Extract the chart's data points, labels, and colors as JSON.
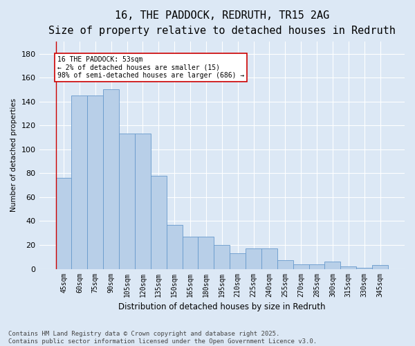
{
  "title": "16, THE PADDOCK, REDRUTH, TR15 2AG",
  "subtitle": "Size of property relative to detached houses in Redruth",
  "xlabel": "Distribution of detached houses by size in Redruth",
  "ylabel": "Number of detached properties",
  "categories": [
    "45sqm",
    "60sqm",
    "75sqm",
    "90sqm",
    "105sqm",
    "120sqm",
    "135sqm",
    "150sqm",
    "165sqm",
    "180sqm",
    "195sqm",
    "210sqm",
    "225sqm",
    "240sqm",
    "255sqm",
    "270sqm",
    "285sqm",
    "300sqm",
    "315sqm",
    "330sqm",
    "345sqm"
  ],
  "values": [
    76,
    145,
    145,
    150,
    113,
    113,
    78,
    37,
    27,
    27,
    20,
    13,
    17,
    17,
    7,
    4,
    4,
    6,
    2,
    1,
    3
  ],
  "bar_color": "#b8cfe8",
  "bar_edge_color": "#6699cc",
  "annotation_box_color": "#ffffff",
  "annotation_box_edge": "#cc0000",
  "annotation_text": "16 THE PADDOCK: 53sqm\n← 2% of detached houses are smaller (15)\n98% of semi-detached houses are larger (686) →",
  "ylim": [
    0,
    190
  ],
  "yticks": [
    0,
    20,
    40,
    60,
    80,
    100,
    120,
    140,
    160,
    180
  ],
  "background_color": "#dce8f5",
  "footer": "Contains HM Land Registry data © Crown copyright and database right 2025.\nContains public sector information licensed under the Open Government Licence v3.0.",
  "title_fontsize": 11,
  "subtitle_fontsize": 9,
  "footer_fontsize": 6.5
}
